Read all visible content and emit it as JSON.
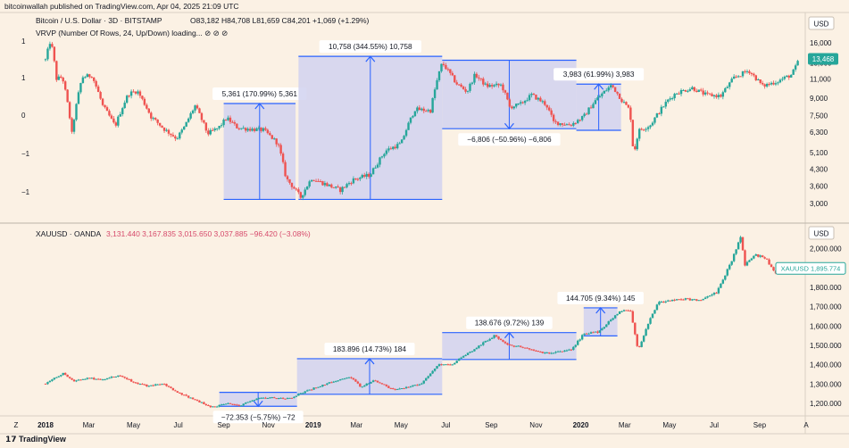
{
  "header": {
    "publisher_line": "bitcoinwallah published on TradingView.com, Apr 04, 2025 21:09 UTC",
    "brand": "TradingView"
  },
  "colors": {
    "background": "#fbf1e4",
    "up": "#26a69a",
    "down": "#ef5350",
    "measure_line": "#2962ff",
    "measure_fill": "#d1d2f0",
    "current_price_tag": "#26a69a"
  },
  "chart_data": [
    {
      "type": "candlestick",
      "title": "Bitcoin / U.S. Dollar · 3D · BITSTAMP",
      "ohlc_label": "O83,182 H84,708 L81,659 C84,201 +1,069 (+1.29%)",
      "indicator": "VRVP (Number Of Rows, 24, Up/Down) loading... ⊘ ⊘ ⊘",
      "currency": "USD",
      "scale": "log",
      "y_ticks": [
        3000,
        3600,
        4300,
        5100,
        6300,
        7500,
        9000,
        11000,
        13000,
        16000
      ],
      "y_tick_labels": [
        "3,000",
        "3,600",
        "4,300",
        "5,100",
        "6,300",
        "7,500",
        "9,000",
        "11,000",
        "13,000",
        "16,000"
      ],
      "last_price_label": "13,468",
      "left_axis_labels": [
        "1",
        "1",
        "0",
        "−1",
        "−1"
      ],
      "path": [
        [
          "2018-01-01",
          13400
        ],
        [
          "2018-01-08",
          16500
        ],
        [
          "2018-01-16",
          11000
        ],
        [
          "2018-01-24",
          11200
        ],
        [
          "2018-02-06",
          6200
        ],
        [
          "2018-02-20",
          11200
        ],
        [
          "2018-03-05",
          11400
        ],
        [
          "2018-03-20",
          8300
        ],
        [
          "2018-04-06",
          6700
        ],
        [
          "2018-04-24",
          9400
        ],
        [
          "2018-05-06",
          9700
        ],
        [
          "2018-05-25",
          7400
        ],
        [
          "2018-06-12",
          6500
        ],
        [
          "2018-06-29",
          5900
        ],
        [
          "2018-07-10",
          6700
        ],
        [
          "2018-07-24",
          8300
        ],
        [
          "2018-08-10",
          6200
        ],
        [
          "2018-08-25",
          6600
        ],
        [
          "2018-09-05",
          7300
        ],
        [
          "2018-09-20",
          6600
        ],
        [
          "2018-10-10",
          6500
        ],
        [
          "2018-10-25",
          6450
        ],
        [
          "2018-11-14",
          5600
        ],
        [
          "2018-11-25",
          3900
        ],
        [
          "2018-12-15",
          3200
        ],
        [
          "2018-12-30",
          3900
        ],
        [
          "2019-01-15",
          3700
        ],
        [
          "2019-02-07",
          3450
        ],
        [
          "2019-02-25",
          3850
        ],
        [
          "2019-03-20",
          4050
        ],
        [
          "2019-04-10",
          5200
        ],
        [
          "2019-05-01",
          5600
        ],
        [
          "2019-05-20",
          8000
        ],
        [
          "2019-06-10",
          7900
        ],
        [
          "2019-06-26",
          13000
        ],
        [
          "2019-07-15",
          10500
        ],
        [
          "2019-07-30",
          9600
        ],
        [
          "2019-08-10",
          11500
        ],
        [
          "2019-08-25",
          10200
        ],
        [
          "2019-09-15",
          10300
        ],
        [
          "2019-09-26",
          8200
        ],
        [
          "2019-10-10",
          8400
        ],
        [
          "2019-10-26",
          9300
        ],
        [
          "2019-11-15",
          8400
        ],
        [
          "2019-11-25",
          7000
        ],
        [
          "2019-12-18",
          6800
        ],
        [
          "2020-01-05",
          7400
        ],
        [
          "2020-01-20",
          8700
        ],
        [
          "2020-02-12",
          10300
        ],
        [
          "2020-02-26",
          8800
        ],
        [
          "2020-03-08",
          7900
        ],
        [
          "2020-03-13",
          4900
        ],
        [
          "2020-03-20",
          6400
        ],
        [
          "2020-04-05",
          6800
        ],
        [
          "2020-04-29",
          8800
        ],
        [
          "2020-05-10",
          9500
        ],
        [
          "2020-06-01",
          10000
        ],
        [
          "2020-06-20",
          9300
        ],
        [
          "2020-07-10",
          9200
        ],
        [
          "2020-07-28",
          11100
        ],
        [
          "2020-08-17",
          12000
        ],
        [
          "2020-09-05",
          10200
        ],
        [
          "2020-09-25",
          10700
        ],
        [
          "2020-10-15",
          11500
        ],
        [
          "2020-10-25",
          13400
        ]
      ],
      "annotations": [
        {
          "label": "5,361 (170.99%) 5,361",
          "from": "2018-09-01",
          "to": "2018-12-08",
          "low": 3130,
          "high": 8500,
          "direction": "up"
        },
        {
          "label": "10,758 (344.55%) 10,758",
          "from": "2018-12-12",
          "to": "2019-06-26",
          "low": 3130,
          "high": 13900,
          "direction": "up"
        },
        {
          "label": "−6,806 (−50.96%) −6,806",
          "from": "2019-06-26",
          "to": "2019-12-26",
          "low": 6540,
          "high": 13350,
          "direction": "down"
        },
        {
          "label": "3,983 (61.99%) 3,983",
          "from": "2019-12-26",
          "to": "2020-02-25",
          "low": 6430,
          "high": 10410,
          "direction": "up"
        }
      ]
    },
    {
      "type": "candlestick",
      "title": "XAUUSD · OANDA",
      "ohlc_label": "3,131.440 3,167.835 3,015.650 3,037.885 −96.420 (−3.08%)",
      "currency": "USD",
      "y_ticks": [
        1200,
        1300,
        1400,
        1500,
        1600,
        1700,
        1800,
        1900,
        2000
      ],
      "y_tick_labels": [
        "1,200.000",
        "1,300.000",
        "1,400.000",
        "1,500.000",
        "1,600.000",
        "1,700.000",
        "1,800.000",
        "1,900.000",
        "2,000.000"
      ],
      "last_price_label": "XAUUSD 1,895.774",
      "x_tick_labels": [
        "Z",
        "2018",
        "Mar",
        "May",
        "Jul",
        "Sep",
        "Nov",
        "2019",
        "Mar",
        "May",
        "Jul",
        "Sep",
        "Nov",
        "2020",
        "Mar",
        "May",
        "Jul",
        "Sep",
        "A"
      ],
      "path": [
        [
          "2018-01-01",
          1302
        ],
        [
          "2018-01-25",
          1355
        ],
        [
          "2018-02-08",
          1315
        ],
        [
          "2018-02-26",
          1330
        ],
        [
          "2018-03-20",
          1325
        ],
        [
          "2018-04-12",
          1345
        ],
        [
          "2018-05-01",
          1310
        ],
        [
          "2018-05-20",
          1290
        ],
        [
          "2018-06-12",
          1300
        ],
        [
          "2018-06-30",
          1255
        ],
        [
          "2018-07-20",
          1225
        ],
        [
          "2018-08-16",
          1180
        ],
        [
          "2018-09-05",
          1200
        ],
        [
          "2018-09-25",
          1190
        ],
        [
          "2018-10-15",
          1225
        ],
        [
          "2018-11-05",
          1230
        ],
        [
          "2018-11-30",
          1225
        ],
        [
          "2018-12-20",
          1260
        ],
        [
          "2019-01-10",
          1290
        ],
        [
          "2019-02-20",
          1340
        ],
        [
          "2019-03-07",
          1285
        ],
        [
          "2019-03-25",
          1320
        ],
        [
          "2019-04-20",
          1270
        ],
        [
          "2019-05-15",
          1290
        ],
        [
          "2019-05-30",
          1305
        ],
        [
          "2019-06-20",
          1400
        ],
        [
          "2019-07-10",
          1405
        ],
        [
          "2019-08-05",
          1470
        ],
        [
          "2019-08-20",
          1510
        ],
        [
          "2019-09-05",
          1550
        ],
        [
          "2019-09-25",
          1500
        ],
        [
          "2019-10-15",
          1490
        ],
        [
          "2019-11-10",
          1460
        ],
        [
          "2019-12-01",
          1465
        ],
        [
          "2019-12-20",
          1480
        ],
        [
          "2020-01-05",
          1560
        ],
        [
          "2020-01-25",
          1570
        ],
        [
          "2020-02-24",
          1680
        ],
        [
          "2020-03-09",
          1680
        ],
        [
          "2020-03-19",
          1475
        ],
        [
          "2020-04-03",
          1620
        ],
        [
          "2020-04-15",
          1720
        ],
        [
          "2020-05-15",
          1740
        ],
        [
          "2020-06-15",
          1735
        ],
        [
          "2020-07-05",
          1775
        ],
        [
          "2020-07-25",
          1940
        ],
        [
          "2020-08-06",
          2060
        ],
        [
          "2020-08-12",
          1915
        ],
        [
          "2020-08-25",
          1970
        ],
        [
          "2020-09-10",
          1950
        ],
        [
          "2020-09-22",
          1870
        ],
        [
          "2020-10-01",
          1900
        ]
      ],
      "annotations": [
        {
          "label": "−72.353 (−5.75%) −72",
          "from": "2018-08-26",
          "to": "2018-12-10",
          "low": 1185,
          "high": 1257,
          "direction": "down"
        },
        {
          "label": "183.896 (14.73%) 184",
          "from": "2018-12-10",
          "to": "2019-06-26",
          "low": 1247,
          "high": 1431,
          "direction": "up"
        },
        {
          "label": "138.676 (9.72%) 139",
          "from": "2019-06-26",
          "to": "2019-12-26",
          "low": 1427,
          "high": 1566,
          "direction": "up"
        },
        {
          "label": "144.705 (9.34%) 145",
          "from": "2020-01-05",
          "to": "2020-02-20",
          "low": 1549,
          "high": 1694,
          "direction": "up"
        }
      ]
    }
  ]
}
